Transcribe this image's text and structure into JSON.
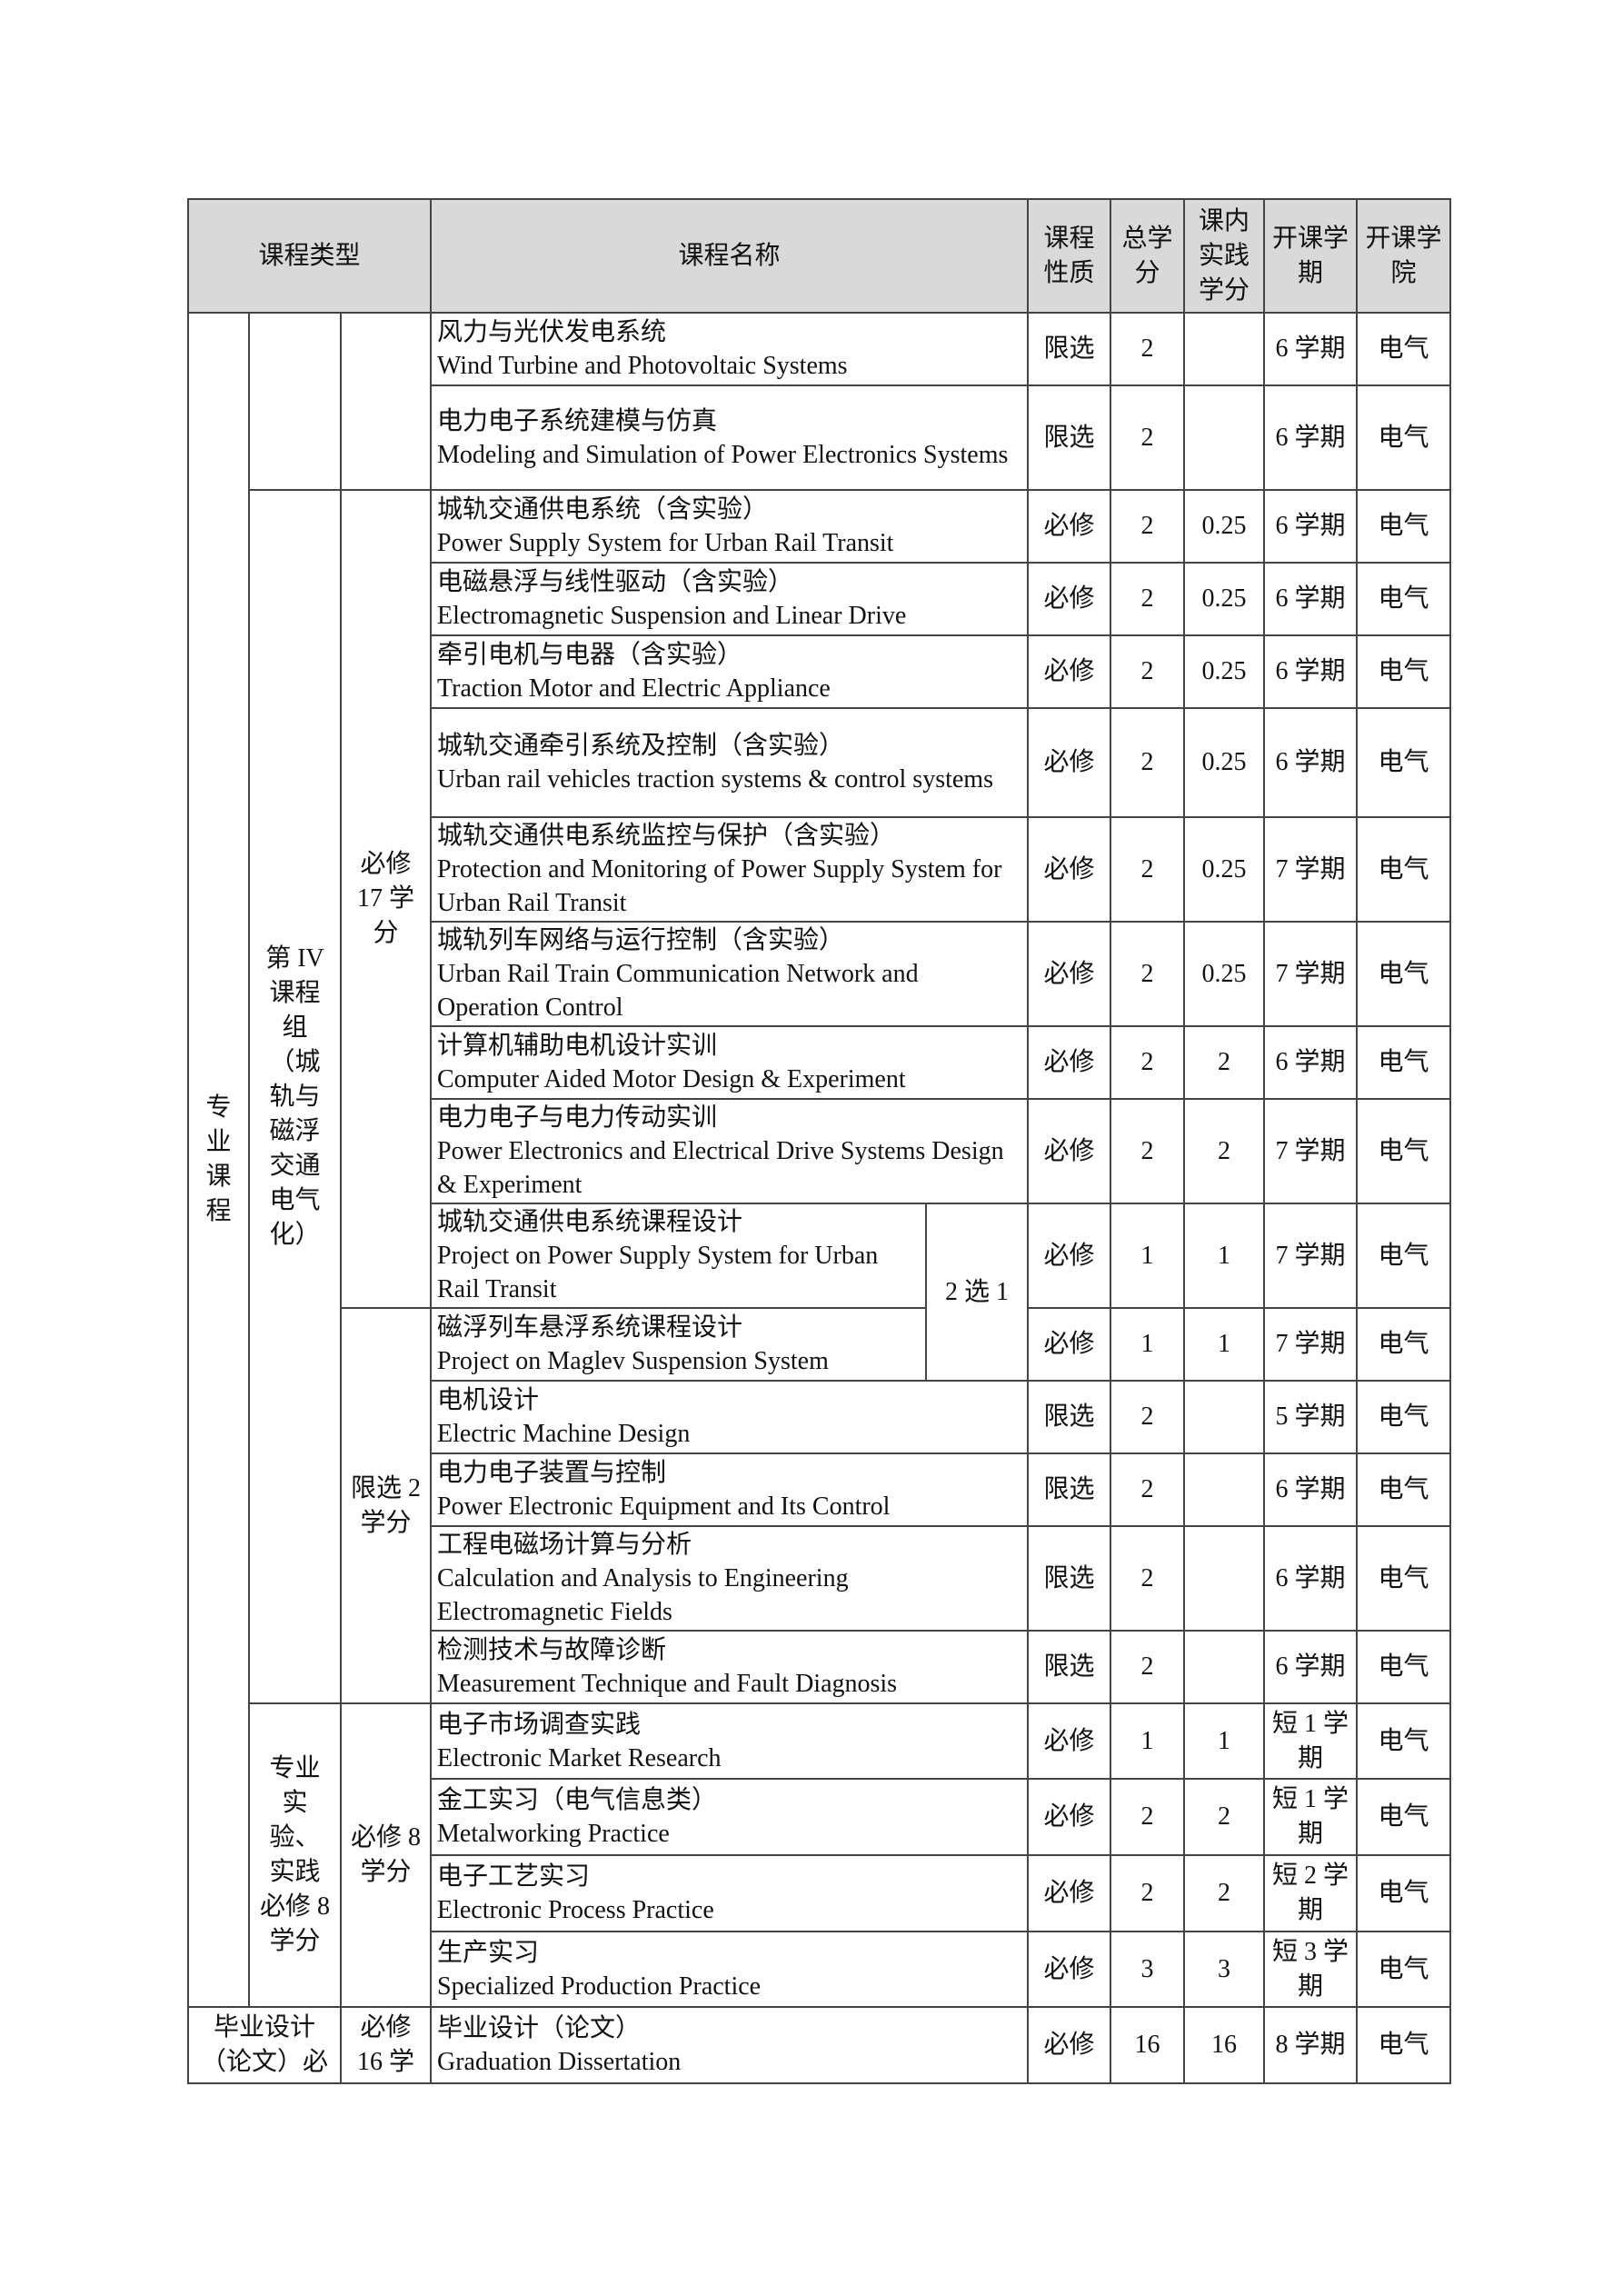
{
  "header": {
    "course_type": "课程类型",
    "course_name": "课程名称",
    "nature": "课程性质",
    "total_credits": "总学分",
    "practice_credits": "课内实践学分",
    "semester": "开课学期",
    "college": "开课学院"
  },
  "groups": {
    "category": "专业课程",
    "group4": "第 IV 课程组（城轨与磁浮交通电气化）",
    "group4_required": "必修 17 学分",
    "group4_elective": "限选 2 学分",
    "practice_group": "专业实验、实践必修 8 学分",
    "practice_required": "必修 8 学分",
    "thesis_group": "毕业设计（论文）必",
    "thesis_required": "必修 16 学",
    "choice": "2 选 1"
  },
  "rows": [
    {
      "cn": "风力与光伏发电系统",
      "en": "Wind Turbine and Photovoltaic Systems",
      "nature": "限选",
      "total": "2",
      "practice": "",
      "semester": "6 学期",
      "college": "电气"
    },
    {
      "cn": "电力电子系统建模与仿真",
      "en": "Modeling and Simulation of Power Electronics Systems",
      "nature": "限选",
      "total": "2",
      "practice": "",
      "semester": "6 学期",
      "college": "电气"
    },
    {
      "cn": "城轨交通供电系统（含实验）",
      "en": "Power Supply System for Urban Rail Transit",
      "nature": "必修",
      "total": "2",
      "practice": "0.25",
      "semester": "6 学期",
      "college": "电气"
    },
    {
      "cn": "电磁悬浮与线性驱动（含实验）",
      "en": "Electromagnetic Suspension and Linear Drive",
      "nature": "必修",
      "total": "2",
      "practice": "0.25",
      "semester": "6 学期",
      "college": "电气"
    },
    {
      "cn": "牵引电机与电器（含实验）",
      "en": "Traction Motor and Electric Appliance",
      "nature": "必修",
      "total": "2",
      "practice": "0.25",
      "semester": "6 学期",
      "college": "电气"
    },
    {
      "cn": "城轨交通牵引系统及控制（含实验）",
      "en": "Urban rail vehicles traction systems & control systems",
      "nature": "必修",
      "total": "2",
      "practice": "0.25",
      "semester": "6 学期",
      "college": "电气"
    },
    {
      "cn": "城轨交通供电系统监控与保护（含实验）",
      "en": "Protection and Monitoring of Power Supply System for Urban Rail Transit",
      "nature": "必修",
      "total": "2",
      "practice": "0.25",
      "semester": "7 学期",
      "college": "电气"
    },
    {
      "cn": "城轨列车网络与运行控制（含实验）",
      "en": "Urban Rail Train Communication Network and Operation Control",
      "nature": "必修",
      "total": "2",
      "practice": "0.25",
      "semester": "7 学期",
      "college": "电气"
    },
    {
      "cn": "计算机辅助电机设计实训",
      "en": "Computer Aided Motor Design & Experiment",
      "nature": "必修",
      "total": "2",
      "practice": "2",
      "semester": "6 学期",
      "college": "电气"
    },
    {
      "cn": "电力电子与电力传动实训",
      "en": "Power Electronics and Electrical Drive Systems Design & Experiment",
      "nature": "必修",
      "total": "2",
      "practice": "2",
      "semester": "7 学期",
      "college": "电气"
    },
    {
      "cn": "城轨交通供电系统课程设计",
      "en": "Project on Power Supply System for Urban Rail Transit",
      "nature": "必修",
      "total": "1",
      "practice": "1",
      "semester": "7 学期",
      "college": "电气"
    },
    {
      "cn": "磁浮列车悬浮系统课程设计",
      "en": "Project on Maglev Suspension System",
      "nature": "必修",
      "total": "1",
      "practice": "1",
      "semester": "7 学期",
      "college": "电气"
    },
    {
      "cn": "电机设计",
      "en": "Electric Machine Design",
      "nature": "限选",
      "total": "2",
      "practice": "",
      "semester": "5 学期",
      "college": "电气"
    },
    {
      "cn": "电力电子装置与控制",
      "en": "Power Electronic Equipment and Its Control",
      "nature": "限选",
      "total": "2",
      "practice": "",
      "semester": "6 学期",
      "college": "电气"
    },
    {
      "cn": "工程电磁场计算与分析",
      "en": "Calculation and Analysis to Engineering Electromagnetic Fields",
      "nature": "限选",
      "total": "2",
      "practice": "",
      "semester": "6 学期",
      "college": "电气"
    },
    {
      "cn": "检测技术与故障诊断",
      "en": "Measurement Technique and Fault Diagnosis",
      "nature": "限选",
      "total": "2",
      "practice": "",
      "semester": "6 学期",
      "college": "电气"
    },
    {
      "cn": "电子市场调查实践",
      "en": "Electronic Market Research",
      "nature": "必修",
      "total": "1",
      "practice": "1",
      "semester": "短 1 学期",
      "college": "电气"
    },
    {
      "cn": "金工实习（电气信息类）",
      "en": "Metalworking Practice",
      "nature": "必修",
      "total": "2",
      "practice": "2",
      "semester": "短 1 学期",
      "college": "电气"
    },
    {
      "cn": "电子工艺实习",
      "en": "Electronic Process Practice",
      "nature": "必修",
      "total": "2",
      "practice": "2",
      "semester": "短 2 学期",
      "college": "电气"
    },
    {
      "cn": "生产实习",
      "en": "Specialized Production Practice",
      "nature": "必修",
      "total": "3",
      "practice": "3",
      "semester": "短 3 学期",
      "college": "电气"
    },
    {
      "cn": "毕业设计（论文）",
      "en": "Graduation Dissertation",
      "nature": "必修",
      "total": "16",
      "practice": "16",
      "semester": "8 学期",
      "college": "电气"
    }
  ]
}
